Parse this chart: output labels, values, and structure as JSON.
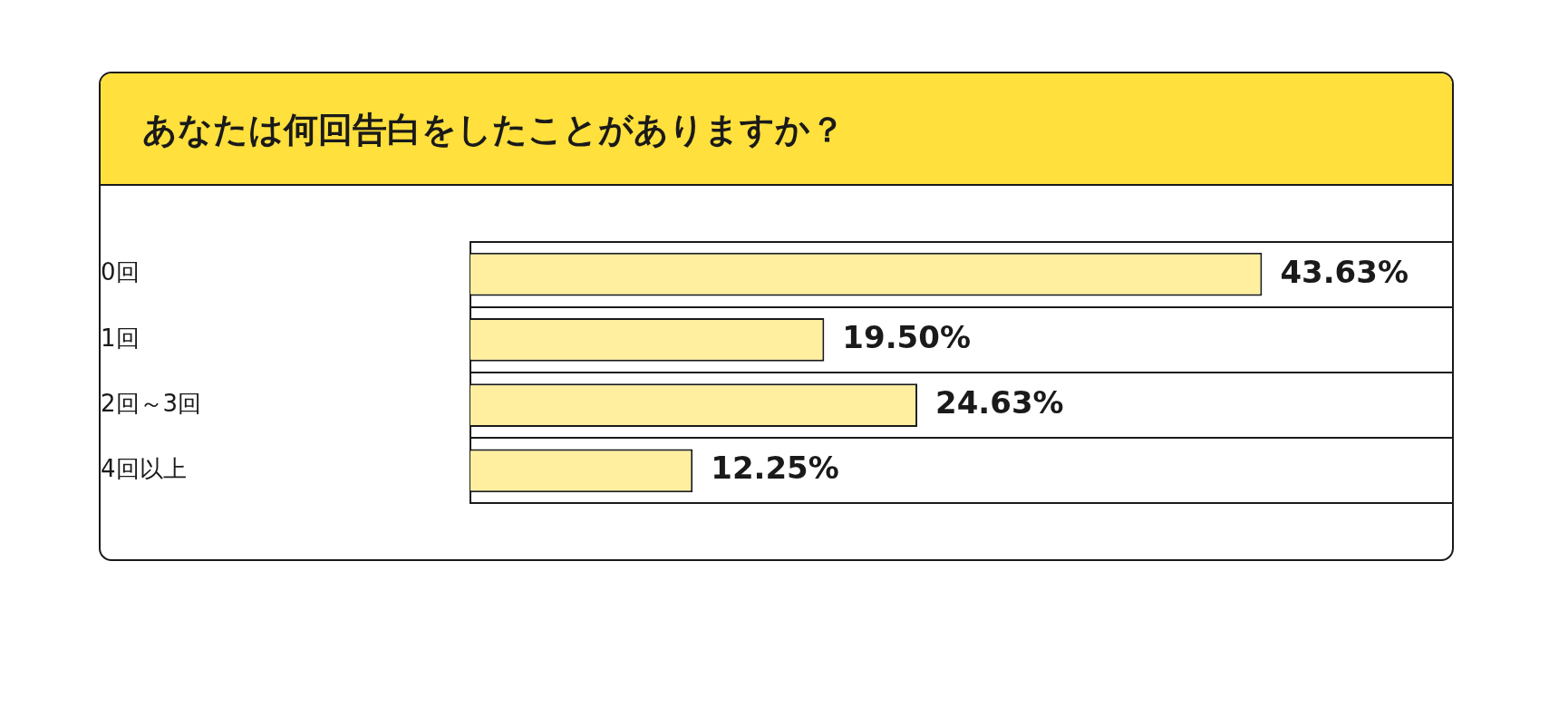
{
  "chart_data": {
    "type": "bar",
    "orientation": "horizontal",
    "title": "あなたは何回告白をしたことがありますか？",
    "categories": [
      "0回",
      "1回",
      "2回～3回",
      "4回以上"
    ],
    "values": [
      43.63,
      19.5,
      24.63,
      12.25
    ],
    "value_labels": [
      "43.63%",
      "19.50%",
      "24.63%",
      "12.25%"
    ],
    "color": "#ffef9f",
    "grid": "y",
    "legend": false
  }
}
